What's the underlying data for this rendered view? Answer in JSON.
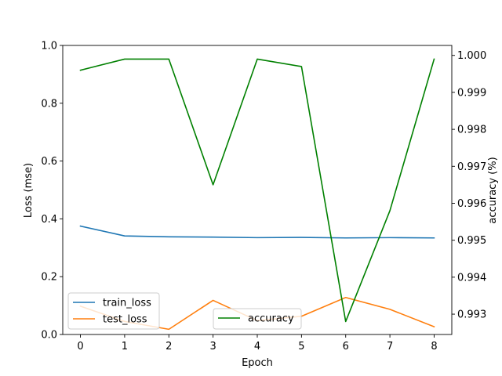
{
  "chart_data": {
    "type": "line",
    "x": [
      0,
      1,
      2,
      3,
      4,
      5,
      6,
      7,
      8
    ],
    "xlabel": "Epoch",
    "xticks": [
      "0",
      "1",
      "2",
      "3",
      "4",
      "5",
      "6",
      "7",
      "8"
    ],
    "xlim": [
      -0.4,
      8.4
    ],
    "left_axis": {
      "ylabel": "Loss (mse)",
      "ylim": [
        0.0,
        1.0
      ],
      "ticks": [
        "0.0",
        "0.2",
        "0.4",
        "0.6",
        "0.8",
        "1.0"
      ],
      "tick_values": [
        0.0,
        0.2,
        0.4,
        0.6,
        0.8,
        1.0
      ]
    },
    "right_axis": {
      "ylabel": "accuracy (%)",
      "ylim": [
        0.99245,
        1.00027
      ],
      "ticks": [
        "0.993",
        "0.994",
        "0.995",
        "0.996",
        "0.997",
        "0.998",
        "0.999",
        "1.000"
      ],
      "tick_values": [
        0.993,
        0.994,
        0.995,
        0.996,
        0.997,
        0.998,
        0.999,
        1.0
      ]
    },
    "series": [
      {
        "name": "train_loss",
        "axis": "left",
        "color": "#1f77b4",
        "values": [
          0.375,
          0.341,
          0.338,
          0.337,
          0.335,
          0.336,
          0.334,
          0.335,
          0.334
        ]
      },
      {
        "name": "test_loss",
        "axis": "left",
        "color": "#ff7f0e",
        "values": [
          0.098,
          0.045,
          0.018,
          0.118,
          0.048,
          0.063,
          0.128,
          0.087,
          0.027
        ]
      },
      {
        "name": "accuracy",
        "axis": "right",
        "color": "#008000",
        "values": [
          0.9996,
          0.9999,
          0.9999,
          0.9965,
          0.9999,
          0.9997,
          0.9928,
          0.9958,
          0.9999
        ]
      }
    ],
    "legends": [
      {
        "placement": "lower-left",
        "entries": [
          "train_loss",
          "test_loss"
        ]
      },
      {
        "placement": "lower-center",
        "entries": [
          "accuracy"
        ]
      }
    ]
  }
}
